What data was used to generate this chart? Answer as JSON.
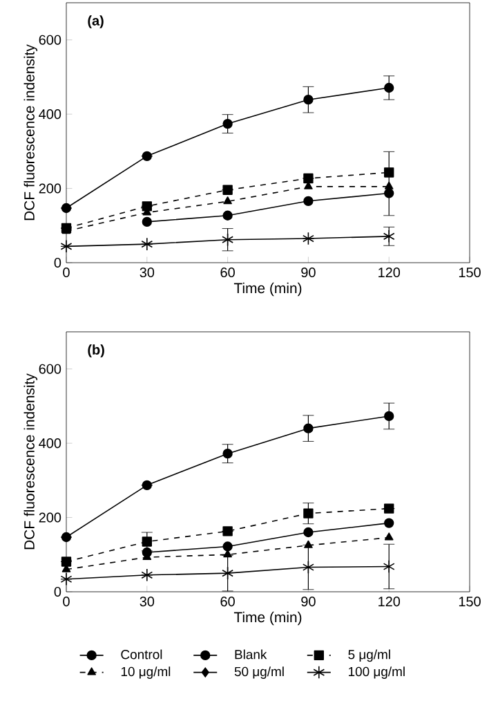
{
  "chart_data": [
    {
      "type": "line",
      "title": "(a)",
      "xlabel": "Time (min)",
      "ylabel": "DCF fluorescence indensity",
      "x": [
        0,
        30,
        60,
        90,
        120
      ],
      "xlim": [
        0,
        150
      ],
      "ylim": [
        0,
        700
      ],
      "xticks": [
        0,
        30,
        60,
        90,
        120,
        150
      ],
      "yticks": [
        0,
        200,
        400,
        600
      ],
      "grid": false,
      "legend": false,
      "series": [
        {
          "color": "#000000",
          "marker": "circle",
          "line_style": "solid",
          "values": [
            147,
            287,
            374,
            439,
            471
          ],
          "errors": [
            null,
            null,
            25,
            35,
            32
          ]
        },
        {
          "color": "#000000",
          "marker": "circle",
          "line_style": "solid",
          "values": [
            null,
            110,
            127,
            166,
            187
          ],
          "errors": [
            null,
            null,
            null,
            null,
            null
          ]
        },
        {
          "color": "#000000",
          "marker": "square",
          "line_style": "dashed",
          "values": [
            93,
            152,
            196,
            227,
            243
          ],
          "errors": [
            null,
            null,
            null,
            null,
            [
              127,
              299
            ]
          ]
        },
        {
          "color": "#000000",
          "marker": "triangle",
          "line_style": "dashed",
          "values": [
            85,
            135,
            165,
            205,
            205
          ],
          "errors": [
            null,
            null,
            null,
            null,
            null
          ]
        },
        {
          "color": "#000000",
          "marker": "diamond",
          "line_style": "solid",
          "values": [
            null,
            null,
            null,
            null,
            null
          ]
        },
        {
          "color": "#000000",
          "marker": "cross",
          "line_style": "solid",
          "values": [
            44,
            50,
            62,
            65,
            71
          ],
          "errors": [
            null,
            null,
            30,
            null,
            25
          ]
        }
      ]
    },
    {
      "type": "line",
      "title": "(b)",
      "xlabel": "Time (min)",
      "ylabel": "DCF fluorescence indensity",
      "x": [
        0,
        30,
        60,
        90,
        120
      ],
      "xlim": [
        0,
        150
      ],
      "ylim": [
        0,
        700
      ],
      "xticks": [
        0,
        30,
        60,
        90,
        120,
        150
      ],
      "yticks": [
        0,
        200,
        400,
        600
      ],
      "grid": false,
      "legend": "bottom",
      "series": [
        {
          "name": "Control",
          "color": "#000000",
          "marker": "circle",
          "line_style": "solid",
          "values": [
            147,
            287,
            372,
            440,
            473
          ],
          "errors": [
            null,
            null,
            25,
            35,
            35
          ]
        },
        {
          "name": "Blank",
          "color": "#000000",
          "marker": "circle",
          "line_style": "solid",
          "values": [
            null,
            106,
            122,
            160,
            185
          ],
          "errors": [
            null,
            null,
            null,
            null,
            null
          ]
        },
        {
          "name": "5 μg/ml",
          "color": "#000000",
          "marker": "square",
          "line_style": "dashed",
          "values": [
            81,
            135,
            163,
            211,
            224
          ],
          "errors": [
            null,
            25,
            null,
            28,
            null
          ]
        },
        {
          "name": "10 μg/ml",
          "color": "#000000",
          "marker": "triangle",
          "line_style": "dashed",
          "values": [
            60,
            93,
            100,
            125,
            146
          ],
          "errors": [
            null,
            null,
            null,
            null,
            null
          ]
        },
        {
          "name": "50 μg/ml",
          "color": "#000000",
          "marker": "diamond",
          "line_style": "solid",
          "values": [
            null,
            null,
            null,
            null,
            null
          ]
        },
        {
          "name": "100 μg/ml",
          "color": "#000000",
          "marker": "cross",
          "line_style": "solid",
          "values": [
            34,
            45,
            50,
            66,
            68
          ],
          "errors": [
            null,
            null,
            48,
            60,
            60
          ]
        }
      ]
    }
  ]
}
